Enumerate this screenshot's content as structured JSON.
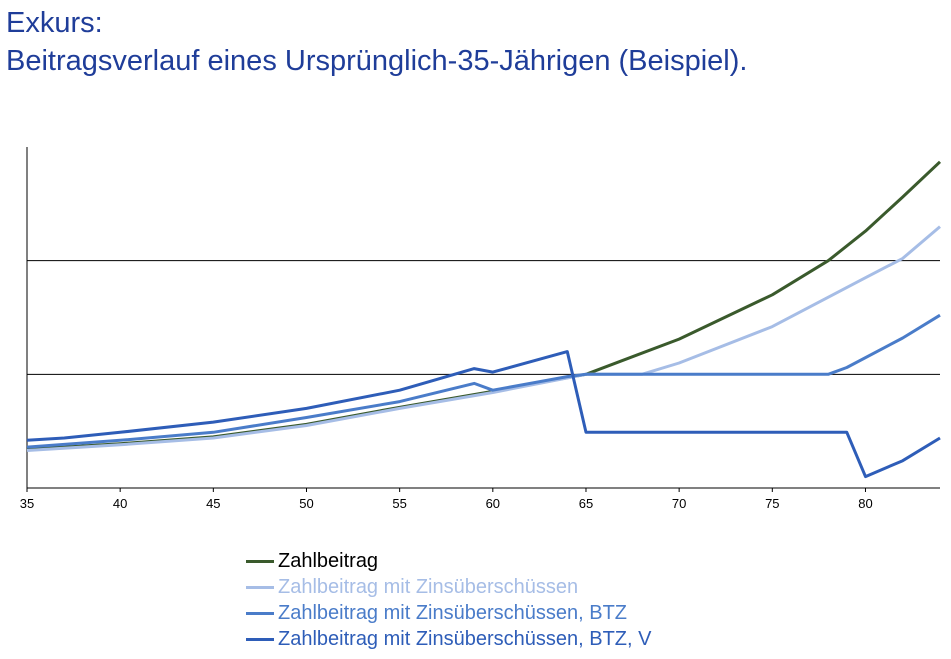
{
  "title": {
    "line1": "Exkurs:",
    "line2": "Beitragsverlauf eines Ursprünglich-35-Jährigen (Beispiel)."
  },
  "chart_data": {
    "type": "line",
    "title": "",
    "xlabel": "",
    "ylabel": "",
    "xlim": [
      35,
      84
    ],
    "ylim": [
      0,
      3
    ],
    "x_ticks": [
      35,
      40,
      45,
      50,
      55,
      60,
      65,
      70,
      75,
      80
    ],
    "y_gridlines": [
      1,
      2
    ],
    "y_tick_labels_shown": false,
    "grid": "horizontal",
    "legend_position": "bottom",
    "series": [
      {
        "name": "Zahlbeitrag",
        "color": "#3a5a2c",
        "points": [
          [
            35,
            0.34
          ],
          [
            40,
            0.39
          ],
          [
            45,
            0.45
          ],
          [
            50,
            0.56
          ],
          [
            55,
            0.71
          ],
          [
            60,
            0.85
          ],
          [
            65,
            1.0
          ],
          [
            70,
            1.31
          ],
          [
            75,
            1.7
          ],
          [
            78,
            2.0
          ],
          [
            80,
            2.26
          ],
          [
            82,
            2.56
          ],
          [
            84,
            2.87
          ]
        ]
      },
      {
        "name": "Zahlbeitrag mit Zinsüberschüssen",
        "color": "#a6bde6",
        "points": [
          [
            35,
            0.33
          ],
          [
            40,
            0.38
          ],
          [
            45,
            0.44
          ],
          [
            50,
            0.55
          ],
          [
            55,
            0.7
          ],
          [
            60,
            0.84
          ],
          [
            65,
            1.0
          ],
          [
            68,
            1.0
          ],
          [
            70,
            1.1
          ],
          [
            75,
            1.42
          ],
          [
            80,
            1.85
          ],
          [
            82,
            2.02
          ],
          [
            84,
            2.3
          ]
        ]
      },
      {
        "name": "Zahlbeitrag mit Zinsüberschüssen, BTZ",
        "color": "#4a7cc9",
        "points": [
          [
            35,
            0.36
          ],
          [
            40,
            0.42
          ],
          [
            45,
            0.49
          ],
          [
            50,
            0.62
          ],
          [
            55,
            0.76
          ],
          [
            59,
            0.92
          ],
          [
            60,
            0.86
          ],
          [
            64,
            0.98
          ],
          [
            65,
            1.0
          ],
          [
            78,
            1.0
          ],
          [
            79,
            1.06
          ],
          [
            82,
            1.32
          ],
          [
            84,
            1.52
          ]
        ]
      },
      {
        "name": "Zahlbeitrag mit Zinsüberschüssen, BTZ, V",
        "color": "#2e5db8",
        "points": [
          [
            35,
            0.42
          ],
          [
            37,
            0.44
          ],
          [
            40,
            0.49
          ],
          [
            45,
            0.58
          ],
          [
            50,
            0.7
          ],
          [
            55,
            0.86
          ],
          [
            59,
            1.05
          ],
          [
            60,
            1.02
          ],
          [
            64,
            1.2
          ],
          [
            65,
            0.49
          ],
          [
            79,
            0.49
          ],
          [
            80,
            0.1
          ],
          [
            82,
            0.24
          ],
          [
            84,
            0.44
          ]
        ]
      }
    ]
  }
}
